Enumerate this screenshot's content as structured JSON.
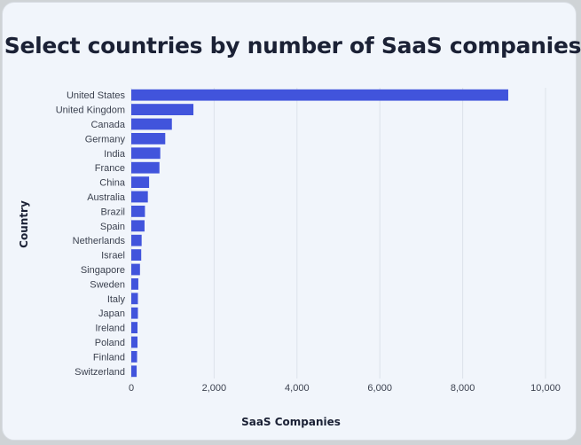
{
  "chart_data": {
    "type": "bar",
    "orientation": "horizontal",
    "title": "Select countries by number of SaaS companies",
    "xlabel": "SaaS Companies",
    "ylabel": "Country",
    "categories": [
      "United States",
      "United Kingdom",
      "Canada",
      "Germany",
      "India",
      "France",
      "China",
      "Australia",
      "Brazil",
      "Spain",
      "Netherlands",
      "Israel",
      "Singapore",
      "Sweden",
      "Italy",
      "Japan",
      "Ireland",
      "Poland",
      "Finland",
      "Switzerland"
    ],
    "values": [
      9100,
      1500,
      980,
      820,
      700,
      680,
      430,
      400,
      330,
      320,
      250,
      240,
      210,
      170,
      160,
      160,
      150,
      150,
      140,
      130
    ],
    "xlim": [
      0,
      10000
    ],
    "xticks": [
      "0",
      "2,000",
      "4,000",
      "6,000",
      "8,000",
      "10,000"
    ],
    "xtick_values": [
      0,
      2000,
      4000,
      6000,
      8000,
      10000
    ],
    "grid": "vertical",
    "colors": {
      "bar": "#4154dc",
      "background": "#f1f5fb",
      "grid": "#dde2ea"
    }
  }
}
